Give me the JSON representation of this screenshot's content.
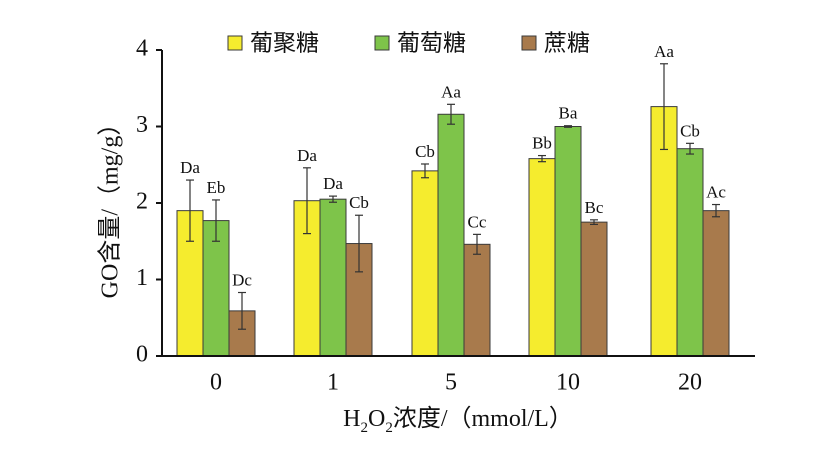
{
  "chart_data": {
    "type": "bar",
    "categories": [
      "0",
      "1",
      "5",
      "10",
      "20"
    ],
    "xlabel": {
      "prefix": "H",
      "sub1": "2",
      "mid": "O",
      "sub2": "2",
      "suffix": "浓度/（mmol/L）"
    },
    "ylabel": "GO含量/（mg/g）",
    "ylim": [
      0,
      4
    ],
    "yticks": [
      "0",
      "1",
      "2",
      "3",
      "4"
    ],
    "legend_position": "top",
    "series": [
      {
        "name": "葡聚糖",
        "color": "#f5ec2e",
        "values": [
          1.9,
          2.03,
          2.42,
          2.58,
          3.26
        ],
        "errors": [
          0.4,
          0.43,
          0.09,
          0.04,
          0.56
        ],
        "labels": [
          "Da",
          "Da",
          "Cb",
          "Bb",
          "Aa"
        ]
      },
      {
        "name": "葡萄糖",
        "color": "#7ec44a",
        "values": [
          1.77,
          2.05,
          3.16,
          3.0,
          2.71
        ],
        "errors": [
          0.27,
          0.04,
          0.13,
          0.01,
          0.07
        ],
        "labels": [
          "Eb",
          "Da",
          "Aa",
          "Ba",
          "Cb"
        ]
      },
      {
        "name": "蔗糖",
        "color": "#a87a4c",
        "values": [
          0.59,
          1.47,
          1.46,
          1.75,
          1.9
        ],
        "errors": [
          0.24,
          0.37,
          0.13,
          0.03,
          0.08
        ],
        "labels": [
          "Dc",
          "Cb",
          "Cc",
          "Bc",
          "Ac"
        ]
      }
    ]
  }
}
